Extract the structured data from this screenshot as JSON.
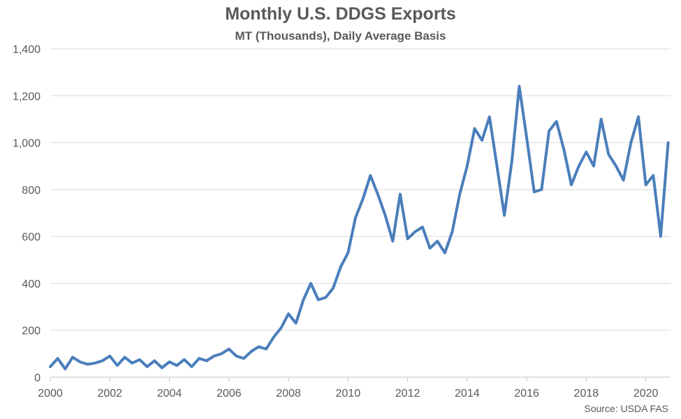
{
  "chart_data": {
    "type": "line",
    "title": "Monthly U.S. DDGS Exports",
    "subtitle": "MT (Thousands), Daily Average Basis",
    "source": "Source: USDA FAS",
    "xlim": [
      2000,
      2020.83
    ],
    "ylim": [
      0,
      1400
    ],
    "x_ticks": [
      2000,
      2002,
      2004,
      2006,
      2008,
      2010,
      2012,
      2014,
      2016,
      2018,
      2020
    ],
    "x_tick_labels": [
      "2000",
      "2002",
      "2004",
      "2006",
      "2008",
      "2010",
      "2012",
      "2014",
      "2016",
      "2018",
      "2020"
    ],
    "y_ticks": [
      0,
      200,
      400,
      600,
      800,
      1000,
      1200,
      1400
    ],
    "y_tick_labels": [
      "0",
      "200",
      "400",
      "600",
      "800",
      "1,000",
      "1,200",
      "1,400"
    ],
    "grid": true,
    "line_color": "#4a7ebb",
    "series": [
      {
        "x": [
          2000.0,
          2000.25,
          2000.5,
          2000.75,
          2001.0,
          2001.25,
          2001.5,
          2001.75,
          2002.0,
          2002.25,
          2002.5,
          2002.75,
          2003.0,
          2003.25,
          2003.5,
          2003.75,
          2004.0,
          2004.25,
          2004.5,
          2004.75,
          2005.0,
          2005.25,
          2005.5,
          2005.75,
          2006.0,
          2006.25,
          2006.5,
          2006.75,
          2007.0,
          2007.25,
          2007.5,
          2007.75,
          2008.0,
          2008.25,
          2008.5,
          2008.75,
          2009.0,
          2009.25,
          2009.5,
          2009.75,
          2010.0,
          2010.25,
          2010.5,
          2010.75,
          2011.0,
          2011.25,
          2011.5,
          2011.75,
          2012.0,
          2012.25,
          2012.5,
          2012.75,
          2013.0,
          2013.25,
          2013.5,
          2013.75,
          2014.0,
          2014.25,
          2014.5,
          2014.75,
          2015.0,
          2015.25,
          2015.5,
          2015.75,
          2016.0,
          2016.25,
          2016.5,
          2016.75,
          2017.0,
          2017.25,
          2017.5,
          2017.75,
          2018.0,
          2018.25,
          2018.5,
          2018.75,
          2019.0,
          2019.25,
          2019.5,
          2019.75,
          2020.0,
          2020.25,
          2020.5,
          2020.75
        ],
        "values": [
          45,
          80,
          35,
          85,
          65,
          55,
          60,
          70,
          90,
          50,
          85,
          60,
          75,
          45,
          70,
          40,
          65,
          50,
          75,
          45,
          80,
          70,
          90,
          100,
          120,
          90,
          80,
          110,
          130,
          120,
          170,
          210,
          270,
          230,
          330,
          400,
          330,
          340,
          380,
          470,
          530,
          680,
          760,
          860,
          780,
          690,
          580,
          780,
          590,
          620,
          640,
          550,
          580,
          530,
          620,
          780,
          900,
          1060,
          1010,
          1110,
          900,
          690,
          920,
          1240,
          1020,
          790,
          800,
          1050,
          1090,
          970,
          820,
          900,
          960,
          900,
          1100,
          950,
          900,
          840,
          1000,
          1110,
          820,
          860,
          600,
          1000
        ]
      }
    ]
  }
}
